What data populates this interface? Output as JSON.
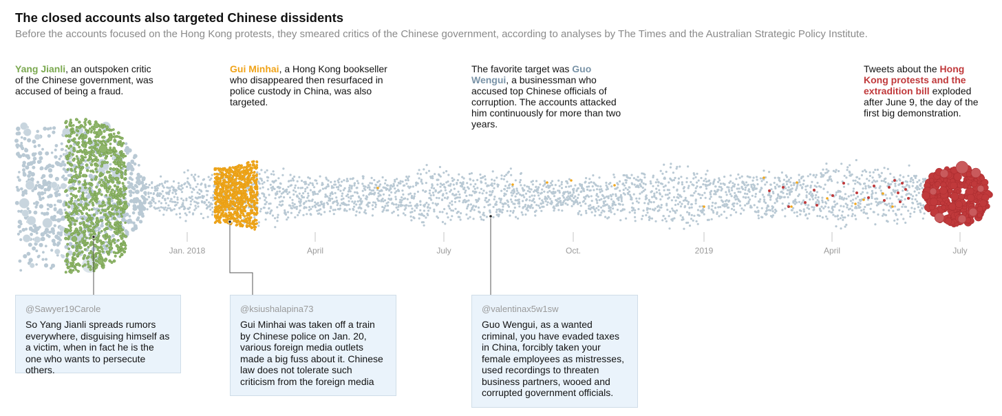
{
  "header": {
    "title": "The closed accounts also targeted Chinese dissidents",
    "subtitle": "Before the accounts focused on the Hong Kong protests, they smeared critics of the Chinese government, according to analyses by The Times and the Australian Strategic Policy Institute."
  },
  "annotations": [
    {
      "highlight": "Yang Jianli",
      "color": "#7aa84f",
      "pre": "",
      "post": ", an outspoken critic of the Chinese government, was accused of being a fraud."
    },
    {
      "highlight": "Gui Minhai",
      "color": "#f0a318",
      "pre": "",
      "post": ", a Hong Kong bookseller who disappeared then resurfaced in police custody in China, was also targeted."
    },
    {
      "highlight": "Guo Wengui",
      "color": "#7892a6",
      "pre": "The favorite target was ",
      "post": ", a businessman who accused top Chinese officials of corruption. The accounts attacked him continuously for more than two years."
    },
    {
      "highlight": "Hong Kong protests and the extradition bill",
      "color": "#c0393b",
      "pre": "Tweets about the ",
      "post": " exploded after June 9, the day of the first big demonstration."
    }
  ],
  "tweets": [
    {
      "handle": "@Sawyer19Carole",
      "text": "So Yang Jianli spreads rumors everywhere, disguising himself as a victim, when in fact he is the one who wants to persecute others."
    },
    {
      "handle": "@ksiushalapina73",
      "text": "Gui Minhai was taken off a train by Chinese police on Jan. 20, various foreign media outlets made a big fuss about it. Chinese law does not tolerate such criticism from the foreign media"
    },
    {
      "handle": "@valentinax5w1sw",
      "text": "Guo Wengui, as a wanted criminal, you have evaded taxes in China, forcibly taken your female employees as mistresses, used recordings to threaten business partners, wooed and corrupted government officials."
    }
  ],
  "chart_data": {
    "type": "scatter",
    "description_type": "beeswarm timeline of tweets",
    "x_ticks": [
      "Jan. 2018",
      "April",
      "July",
      "Oct.",
      "2019",
      "April",
      "July"
    ],
    "x_range": [
      "2017-09",
      "2019-07"
    ],
    "series": [
      {
        "name": "Yang Jianli",
        "color": "#8fb56a"
      },
      {
        "name": "Gui Minhai",
        "color": "#f2a81d"
      },
      {
        "name": "Guo Wengui",
        "color": "#b9c9d4"
      },
      {
        "name": "Hong Kong protests and the extradition bill",
        "color": "#c0393b"
      }
    ]
  }
}
